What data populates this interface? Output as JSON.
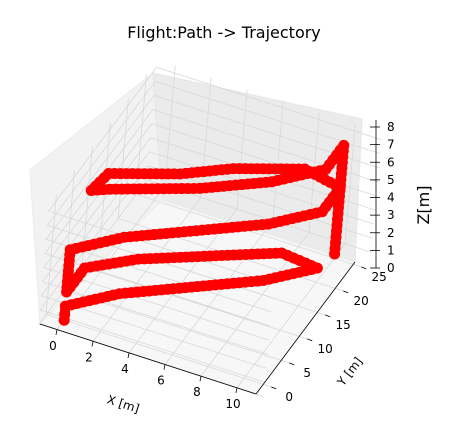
{
  "chart_data": {
    "type": "line",
    "projection": "3d",
    "title": "Flight:Path -> Trajectory",
    "xlabel": "X [m]",
    "ylabel": "Y [m]",
    "zlabel": "Z[m]",
    "x_ticks": [
      "0",
      "2",
      "4",
      "6",
      "8",
      "10"
    ],
    "y_ticks": [
      "0",
      "5",
      "10",
      "15",
      "20",
      "25"
    ],
    "z_ticks": [
      "0",
      "1",
      "2",
      "3",
      "4",
      "5",
      "6",
      "7",
      "8"
    ],
    "xlim": [
      -1,
      11.5
    ],
    "ylim": [
      -2,
      28
    ],
    "zlim": [
      0,
      8.5
    ],
    "grid": true,
    "series": [
      {
        "color": "#ff0000",
        "marker": "o",
        "points": [
          [
            0,
            0,
            0
          ],
          [
            0,
            0,
            0.4
          ],
          [
            0,
            0,
            1
          ],
          [
            2,
            5,
            1
          ],
          [
            5,
            10,
            1
          ],
          [
            8,
            15,
            1
          ],
          [
            10,
            20,
            1
          ],
          [
            8,
            20,
            1.25
          ],
          [
            5,
            15,
            1.5
          ],
          [
            2,
            10,
            1.75
          ],
          [
            0,
            5,
            2
          ],
          [
            0,
            0,
            2
          ],
          [
            0,
            0,
            3.5
          ],
          [
            0,
            0,
            5
          ],
          [
            2,
            5,
            5
          ],
          [
            5,
            10,
            5
          ],
          [
            8,
            15,
            5
          ],
          [
            10,
            20,
            5
          ],
          [
            10,
            25,
            5
          ],
          [
            8,
            25,
            5.5
          ],
          [
            5,
            20,
            6
          ],
          [
            3,
            15,
            6.5
          ],
          [
            0,
            10,
            7
          ],
          [
            0,
            5,
            7.5
          ],
          [
            1,
            5,
            8
          ],
          [
            5,
            10,
            8
          ],
          [
            8,
            15,
            8
          ],
          [
            10,
            20,
            8
          ],
          [
            10,
            25,
            8
          ],
          [
            10,
            25,
            6
          ],
          [
            10,
            25,
            4
          ],
          [
            10,
            25,
            1.5
          ],
          [
            10,
            25,
            0.3
          ]
        ]
      }
    ]
  }
}
